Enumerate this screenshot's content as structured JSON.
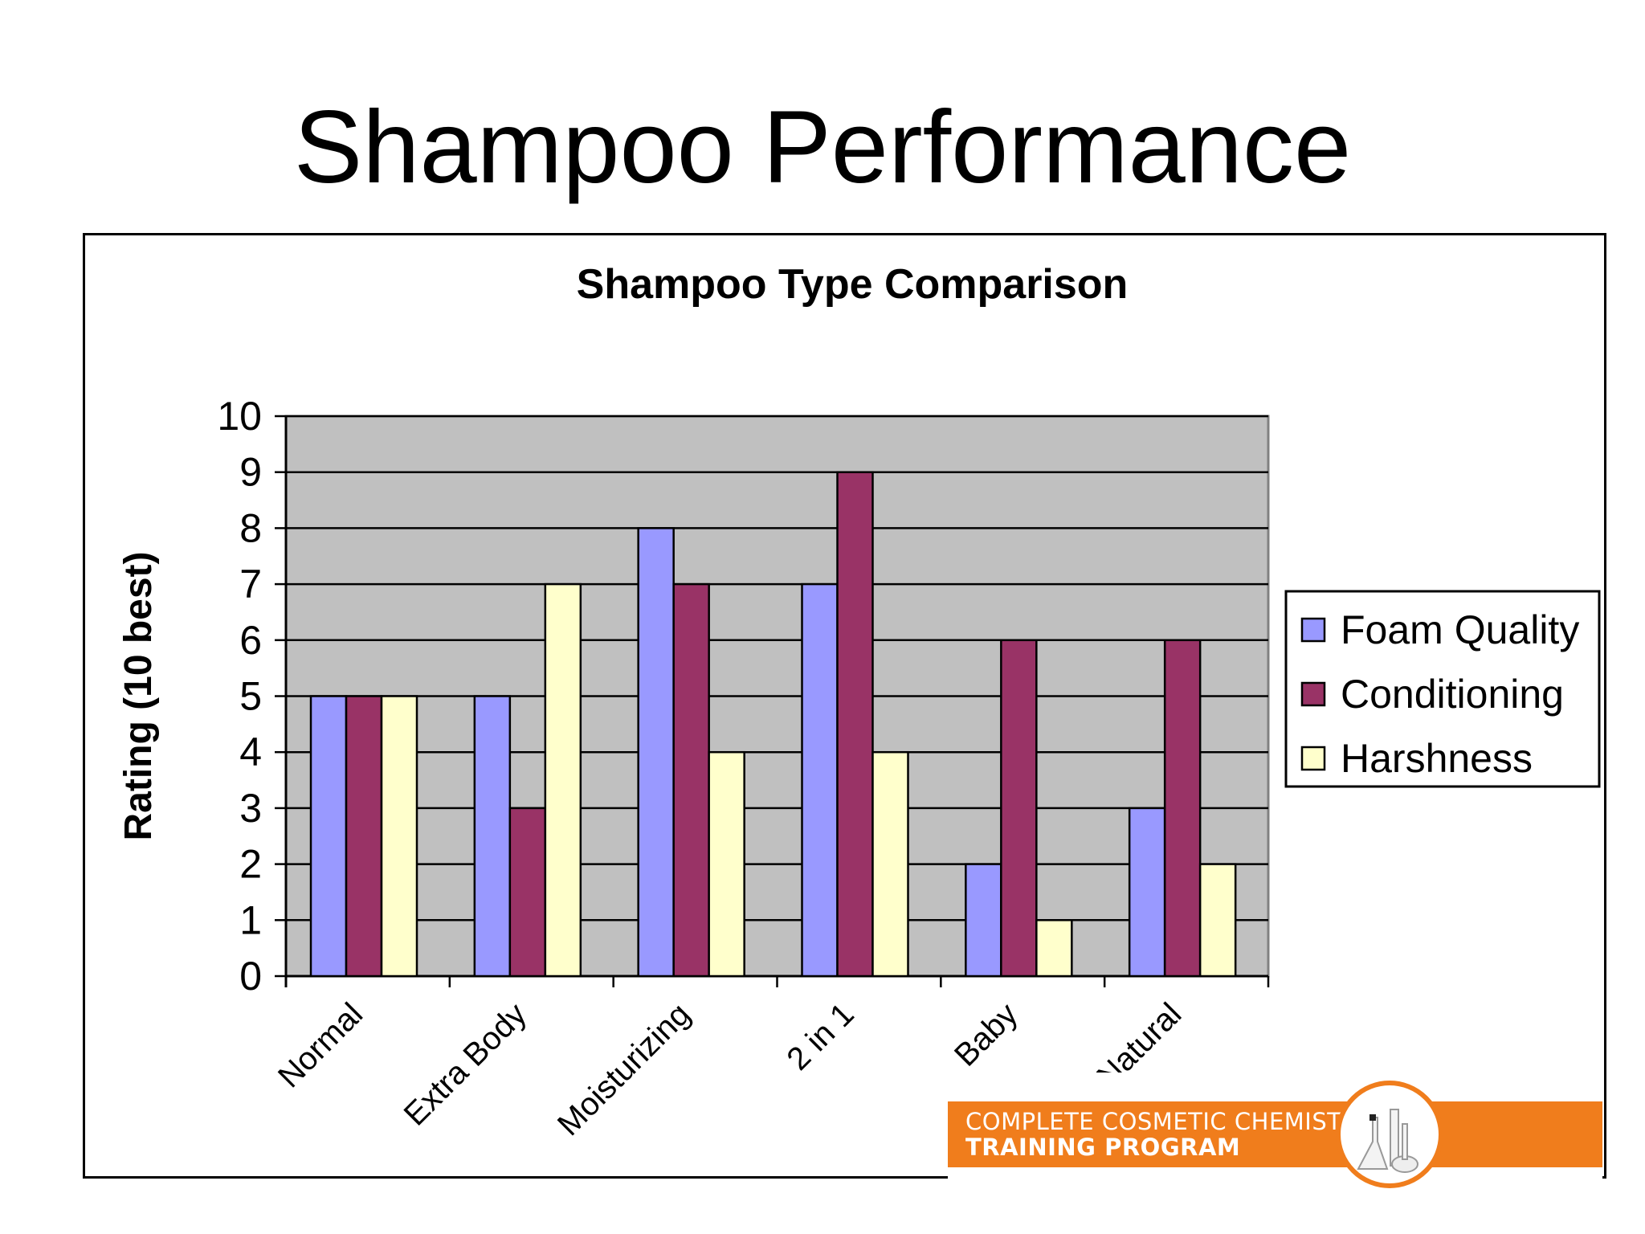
{
  "slide": {
    "title": "Shampoo Performance"
  },
  "logo": {
    "line1": "COMPLETE COSMETIC CHEMIST",
    "line2": "TRAINING PROGRAM"
  },
  "colors": {
    "foam": "#9999ff",
    "conditioning": "#993366",
    "harshness": "#ffffcc",
    "plot_bg": "#c0c0c0",
    "orange": "#f07d1c"
  },
  "chart_data": {
    "type": "bar",
    "title": "Shampoo Type Comparison",
    "ylabel": "Rating (10 best)",
    "xlabel": "",
    "ylim": [
      0,
      10
    ],
    "yticks": [
      "0",
      "1",
      "2",
      "3",
      "4",
      "5",
      "6",
      "7",
      "8",
      "9",
      "10"
    ],
    "categories": [
      "Normal",
      "Extra Body",
      "Moisturizing",
      "2 in 1",
      "Baby",
      "Natural"
    ],
    "series": [
      {
        "name": "Foam Quality",
        "color": "#9999ff",
        "values": [
          5,
          5,
          8,
          7,
          2,
          3
        ]
      },
      {
        "name": "Conditioning",
        "color": "#993366",
        "values": [
          5,
          3,
          7,
          9,
          6,
          6
        ]
      },
      {
        "name": "Harshness",
        "color": "#ffffcc",
        "values": [
          5,
          7,
          4,
          4,
          1,
          2
        ]
      }
    ],
    "grid": true,
    "legend": "right"
  }
}
